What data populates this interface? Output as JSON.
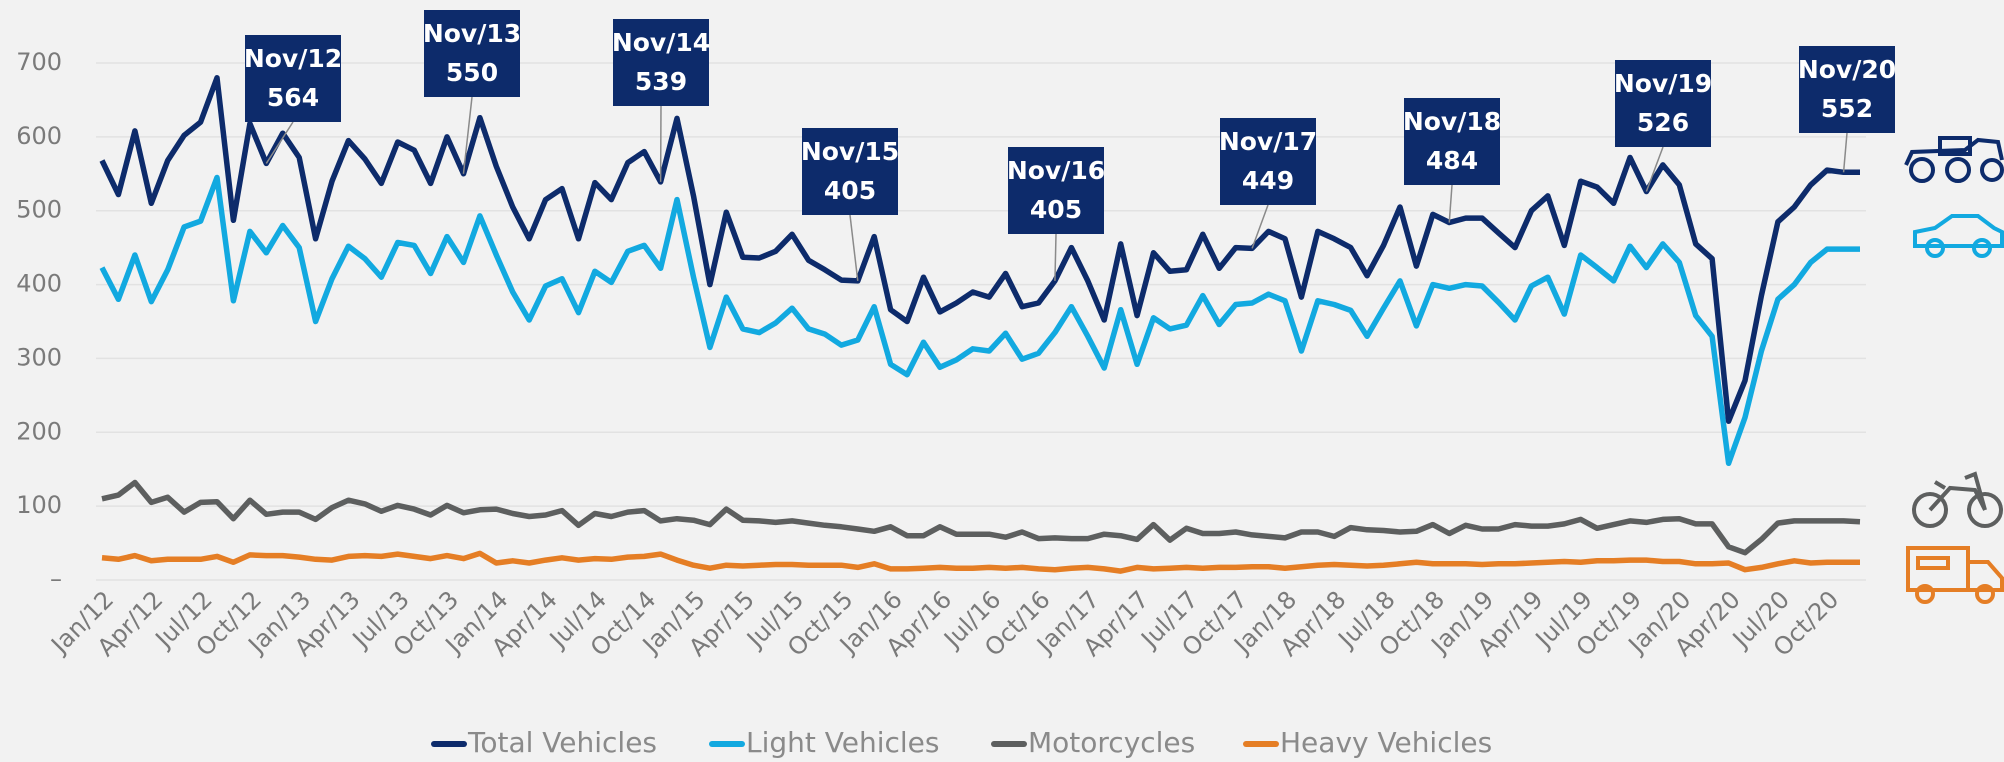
{
  "chart_data": {
    "type": "line",
    "categories": [
      "Jan/12",
      null,
      null,
      "Apr/12",
      null,
      null,
      "Jul/12",
      null,
      null,
      "Oct/12",
      null,
      null,
      "Jan/13",
      null,
      null,
      "Apr/13",
      null,
      null,
      "Jul/13",
      null,
      null,
      "Oct/13",
      null,
      null,
      "Jan/14",
      null,
      null,
      "Apr/14",
      null,
      null,
      "Jul/14",
      null,
      null,
      "Oct/14",
      null,
      null,
      "Jan/15",
      null,
      null,
      "Apr/15",
      null,
      null,
      "Jul/15",
      null,
      null,
      "Oct/15",
      null,
      null,
      "Jan/16",
      null,
      null,
      "Apr/16",
      null,
      null,
      "Jul/16",
      null,
      null,
      "Oct/16",
      null,
      null,
      "Jan/17",
      null,
      null,
      "Apr/17",
      null,
      null,
      "Jul/17",
      null,
      null,
      "Oct/17",
      null,
      null,
      "Jan/18",
      null,
      null,
      "Apr/18",
      null,
      null,
      "Jul/18",
      null,
      null,
      "Oct/18",
      null,
      null,
      "Jan/19",
      null,
      null,
      "Apr/19",
      null,
      null,
      "Jul/19",
      null,
      null,
      "Oct/19",
      null,
      null,
      "Jan/20",
      null,
      null,
      "Apr/20",
      null,
      null,
      "Jul/20",
      null,
      null,
      "Oct/20",
      null,
      null
    ],
    "series": [
      {
        "name": "Total Vehicles",
        "color": "#0d2b6b",
        "values": [
          568,
          522,
          608,
          510,
          568,
          602,
          620,
          680,
          487,
          618,
          564,
          605,
          572,
          462,
          540,
          595,
          570,
          537,
          593,
          582,
          537,
          600,
          550,
          626,
          560,
          505,
          462,
          515,
          530,
          462,
          538,
          515,
          565,
          580,
          539,
          625,
          520,
          400,
          498,
          437,
          436,
          445,
          468,
          433,
          420,
          406,
          405,
          465,
          366,
          350,
          410,
          363,
          375,
          390,
          383,
          415,
          370,
          375,
          405,
          450,
          405,
          352,
          455,
          358,
          443,
          418,
          420,
          468,
          422,
          450,
          449,
          472,
          462,
          383,
          472,
          462,
          450,
          412,
          453,
          505,
          425,
          495,
          484,
          490,
          490,
          470,
          450,
          500,
          520,
          453,
          540,
          532,
          510,
          572,
          526,
          562,
          535,
          455,
          435,
          215,
          270,
          385,
          485,
          505,
          535,
          555,
          552,
          552
        ]
      },
      {
        "name": "Light Vehicles",
        "color": "#12a9e0",
        "values": [
          423,
          380,
          440,
          377,
          420,
          478,
          486,
          545,
          378,
          472,
          443,
          480,
          450,
          350,
          408,
          452,
          435,
          410,
          457,
          453,
          415,
          465,
          430,
          493,
          440,
          390,
          352,
          398,
          408,
          362,
          418,
          403,
          445,
          453,
          422,
          515,
          410,
          315,
          383,
          340,
          335,
          348,
          368,
          340,
          333,
          318,
          325,
          370,
          292,
          278,
          322,
          288,
          298,
          313,
          310,
          334,
          299,
          307,
          335,
          370,
          330,
          287,
          366,
          292,
          355,
          340,
          345,
          385,
          346,
          373,
          375,
          387,
          378,
          310,
          378,
          373,
          365,
          330,
          368,
          405,
          344,
          400,
          395,
          400,
          398,
          376,
          352,
          398,
          410,
          360,
          440,
          423,
          405,
          452,
          423,
          455,
          430,
          358,
          330,
          158,
          220,
          310,
          380,
          400,
          430,
          448,
          448,
          448
        ]
      },
      {
        "name": "Motorcycles",
        "color": "#5d5f5f",
        "values": [
          110,
          115,
          132,
          105,
          112,
          92,
          105,
          106,
          83,
          108,
          89,
          92,
          92,
          82,
          98,
          108,
          103,
          93,
          101,
          96,
          88,
          101,
          91,
          95,
          96,
          90,
          86,
          88,
          94,
          74,
          90,
          86,
          92,
          94,
          80,
          83,
          81,
          75,
          96,
          81,
          80,
          78,
          80,
          77,
          74,
          72,
          69,
          66,
          72,
          60,
          60,
          72,
          62,
          62,
          62,
          58,
          65,
          56,
          57,
          56,
          56,
          62,
          60,
          55,
          75,
          54,
          70,
          63,
          63,
          65,
          61,
          59,
          57,
          65,
          65,
          59,
          71,
          68,
          67,
          65,
          66,
          75,
          63,
          74,
          69,
          69,
          75,
          73,
          73,
          76,
          82,
          70,
          75,
          80,
          78,
          82,
          83,
          76,
          76,
          45,
          37,
          55,
          77,
          80,
          80,
          80,
          80,
          79
        ]
      },
      {
        "name": "Heavy Vehicles",
        "color": "#e57e25",
        "values": [
          30,
          28,
          33,
          26,
          28,
          28,
          28,
          32,
          24,
          34,
          33,
          33,
          31,
          28,
          27,
          32,
          33,
          32,
          35,
          32,
          29,
          33,
          29,
          36,
          23,
          26,
          23,
          27,
          30,
          27,
          29,
          28,
          31,
          32,
          35,
          27,
          20,
          16,
          20,
          19,
          20,
          21,
          21,
          20,
          20,
          20,
          17,
          22,
          15,
          15,
          16,
          17,
          16,
          16,
          17,
          16,
          17,
          15,
          14,
          16,
          17,
          15,
          12,
          17,
          15,
          16,
          17,
          16,
          17,
          17,
          18,
          18,
          16,
          18,
          20,
          21,
          20,
          19,
          20,
          22,
          24,
          22,
          22,
          22,
          21,
          22,
          22,
          23,
          24,
          25,
          24,
          26,
          26,
          27,
          27,
          25,
          25,
          22,
          22,
          23,
          14,
          17,
          22,
          26,
          23,
          24,
          24,
          24
        ]
      }
    ],
    "annotations": [
      {
        "label": "Nov/12",
        "value": 564
      },
      {
        "label": "Nov/13",
        "value": 550
      },
      {
        "label": "Nov/14",
        "value": 539
      },
      {
        "label": "Nov/15",
        "value": 405
      },
      {
        "label": "Nov/16",
        "value": 405
      },
      {
        "label": "Nov/17",
        "value": 449
      },
      {
        "label": "Nov/18",
        "value": 484
      },
      {
        "label": "Nov/19",
        "value": 526
      },
      {
        "label": "Nov/20",
        "value": 552
      }
    ],
    "ylim": [
      0,
      700
    ],
    "yticks": [
      {
        "value": 0,
        "label": "–"
      },
      100,
      200,
      300,
      400,
      500,
      600,
      700
    ],
    "grid": true
  }
}
